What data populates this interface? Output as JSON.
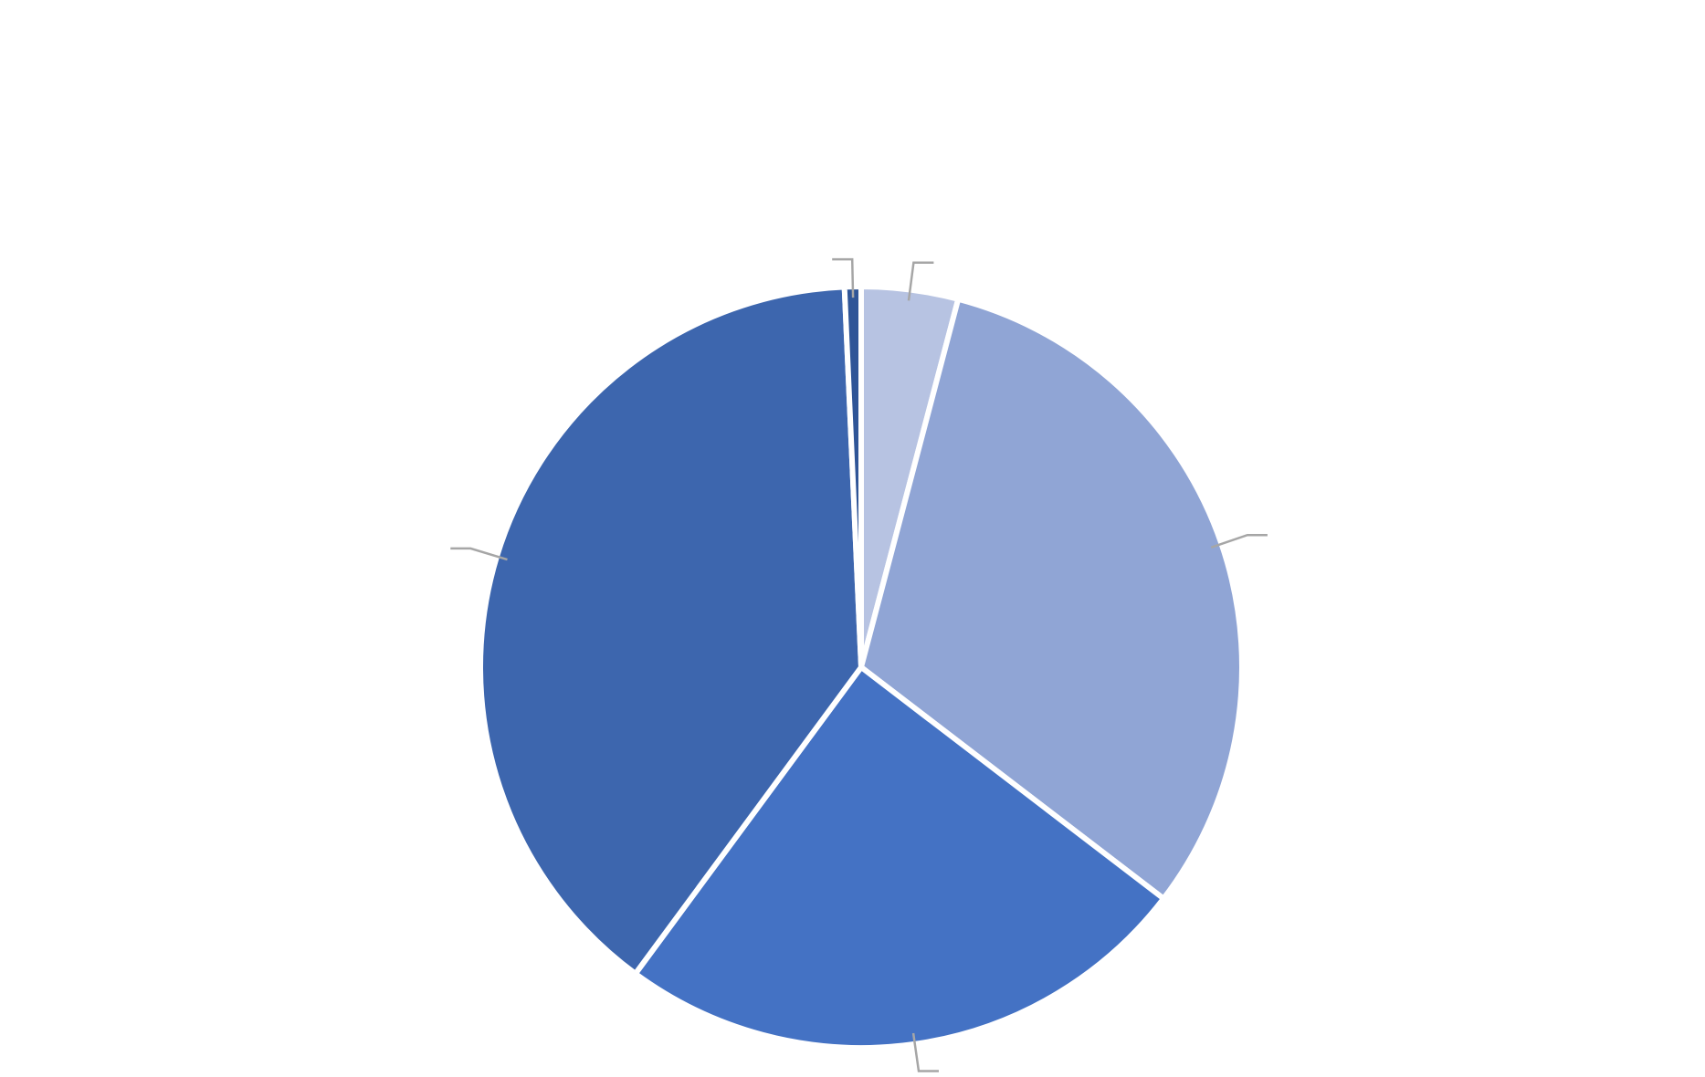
{
  "chart_data": {
    "type": "pie",
    "title": "",
    "slices": [
      {
        "label": "",
        "value": 4.1,
        "color": "#B7C3E2"
      },
      {
        "label": "",
        "value": 31.3,
        "color": "#90A5D5"
      },
      {
        "label": "",
        "value": 24.7,
        "color": "#4472C4"
      },
      {
        "label": "",
        "value": 39.2,
        "color": "#3D66AE"
      },
      {
        "label": "",
        "value": 0.7,
        "color": "#2F5597"
      }
    ],
    "start_angle_deg": 0,
    "direction": "clockwise",
    "legend": "none",
    "data_labels": "outside-with-leader-lines"
  }
}
